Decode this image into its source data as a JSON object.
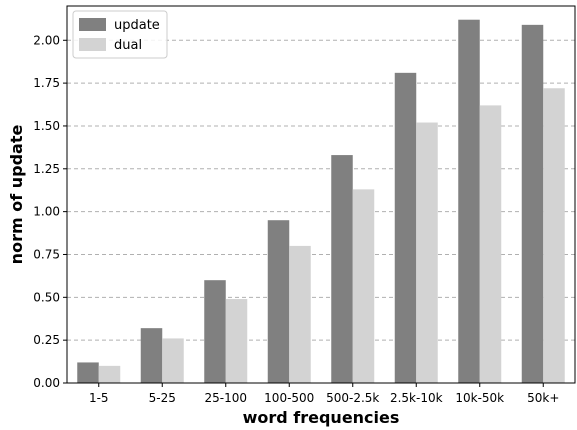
{
  "chart_data": {
    "type": "bar",
    "title": "",
    "xlabel": "word frequencies",
    "ylabel": "norm of update",
    "categories": [
      "1-5",
      "5-25",
      "25-100",
      "100-500",
      "500-2.5k",
      "2.5k-10k",
      "10k-50k",
      "50k+"
    ],
    "series": [
      {
        "name": "update",
        "color": "#808080",
        "values": [
          0.12,
          0.32,
          0.6,
          0.95,
          1.33,
          1.81,
          2.12,
          2.09
        ]
      },
      {
        "name": "dual",
        "color": "#d3d3d3",
        "values": [
          0.1,
          0.26,
          0.49,
          0.8,
          1.13,
          1.52,
          1.62,
          1.72
        ]
      }
    ],
    "ylim": [
      0,
      2.2
    ],
    "yticks": [
      "0.00",
      "0.25",
      "0.50",
      "0.75",
      "1.00",
      "1.25",
      "1.50",
      "1.75",
      "2.00"
    ],
    "grid": "horizontal dashed",
    "legend_position": "top-left"
  }
}
